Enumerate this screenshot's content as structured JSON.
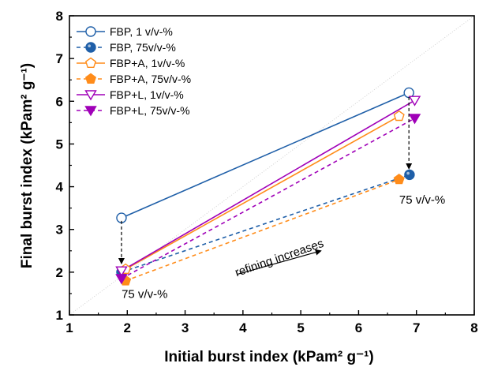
{
  "chart_data": {
    "type": "scatter",
    "xlabel": "Initial burst index (kPam² g⁻¹)",
    "ylabel": "Final burst index (kPam² g⁻¹)",
    "xlim": [
      1,
      8
    ],
    "ylim": [
      1,
      8
    ],
    "xticks": [
      "1",
      "2",
      "3",
      "4",
      "5",
      "6",
      "7",
      "8"
    ],
    "yticks": [
      "1",
      "2",
      "3",
      "4",
      "5",
      "6",
      "7",
      "8"
    ],
    "grid": false,
    "diagonal_reference": true,
    "legend_position": "top-left",
    "series": [
      {
        "name": "FBP,       1 v/v-%",
        "color": "#1f5fa8",
        "marker": "circle-open",
        "line": "solid",
        "points": [
          [
            1.9,
            3.27
          ],
          [
            6.87,
            6.2
          ]
        ]
      },
      {
        "name": "FBP,     75v/v-%",
        "color": "#1f5fa8",
        "marker": "circle-filled",
        "line": "dashed",
        "points": [
          [
            1.9,
            2.0
          ],
          [
            6.88,
            4.28
          ]
        ]
      },
      {
        "name": "FBP+A,   1v/v-%",
        "color": "#ff8c1a",
        "marker": "pentagon-open",
        "line": "solid",
        "points": [
          [
            1.97,
            2.07
          ],
          [
            6.7,
            5.65
          ]
        ]
      },
      {
        "name": "FBP+A, 75v/v-%",
        "color": "#ff8c1a",
        "marker": "pentagon-filled",
        "line": "dashed",
        "points": [
          [
            1.97,
            1.8
          ],
          [
            6.7,
            4.17
          ]
        ]
      },
      {
        "name": "FBP+L,   1v/v-%",
        "color": "#a000b8",
        "marker": "triangle-down-open",
        "line": "solid",
        "points": [
          [
            1.9,
            2.03
          ],
          [
            6.97,
            6.02
          ]
        ]
      },
      {
        "name": "FBP+L, 75v/v-%",
        "color": "#a000b8",
        "marker": "triangle-down-filled",
        "line": "dashed",
        "points": [
          [
            1.9,
            1.85
          ],
          [
            6.97,
            5.6
          ]
        ]
      }
    ],
    "annotations": [
      {
        "text": "75 v/v-%",
        "x": 2.3,
        "y": 1.4
      },
      {
        "text": "75 v/v-%",
        "x": 7.1,
        "y": 3.6
      },
      {
        "text": "refining increases",
        "x": 4.65,
        "y": 2.25
      }
    ],
    "arrows": [
      {
        "from": [
          1.9,
          3.2
        ],
        "to": [
          1.9,
          2.2
        ],
        "style": "dashed"
      },
      {
        "from": [
          6.87,
          6.1
        ],
        "to": [
          6.87,
          4.42
        ],
        "style": "dashed"
      },
      {
        "from": [
          3.9,
          1.95
        ],
        "to": [
          5.35,
          2.5
        ],
        "style": "solid"
      }
    ]
  }
}
